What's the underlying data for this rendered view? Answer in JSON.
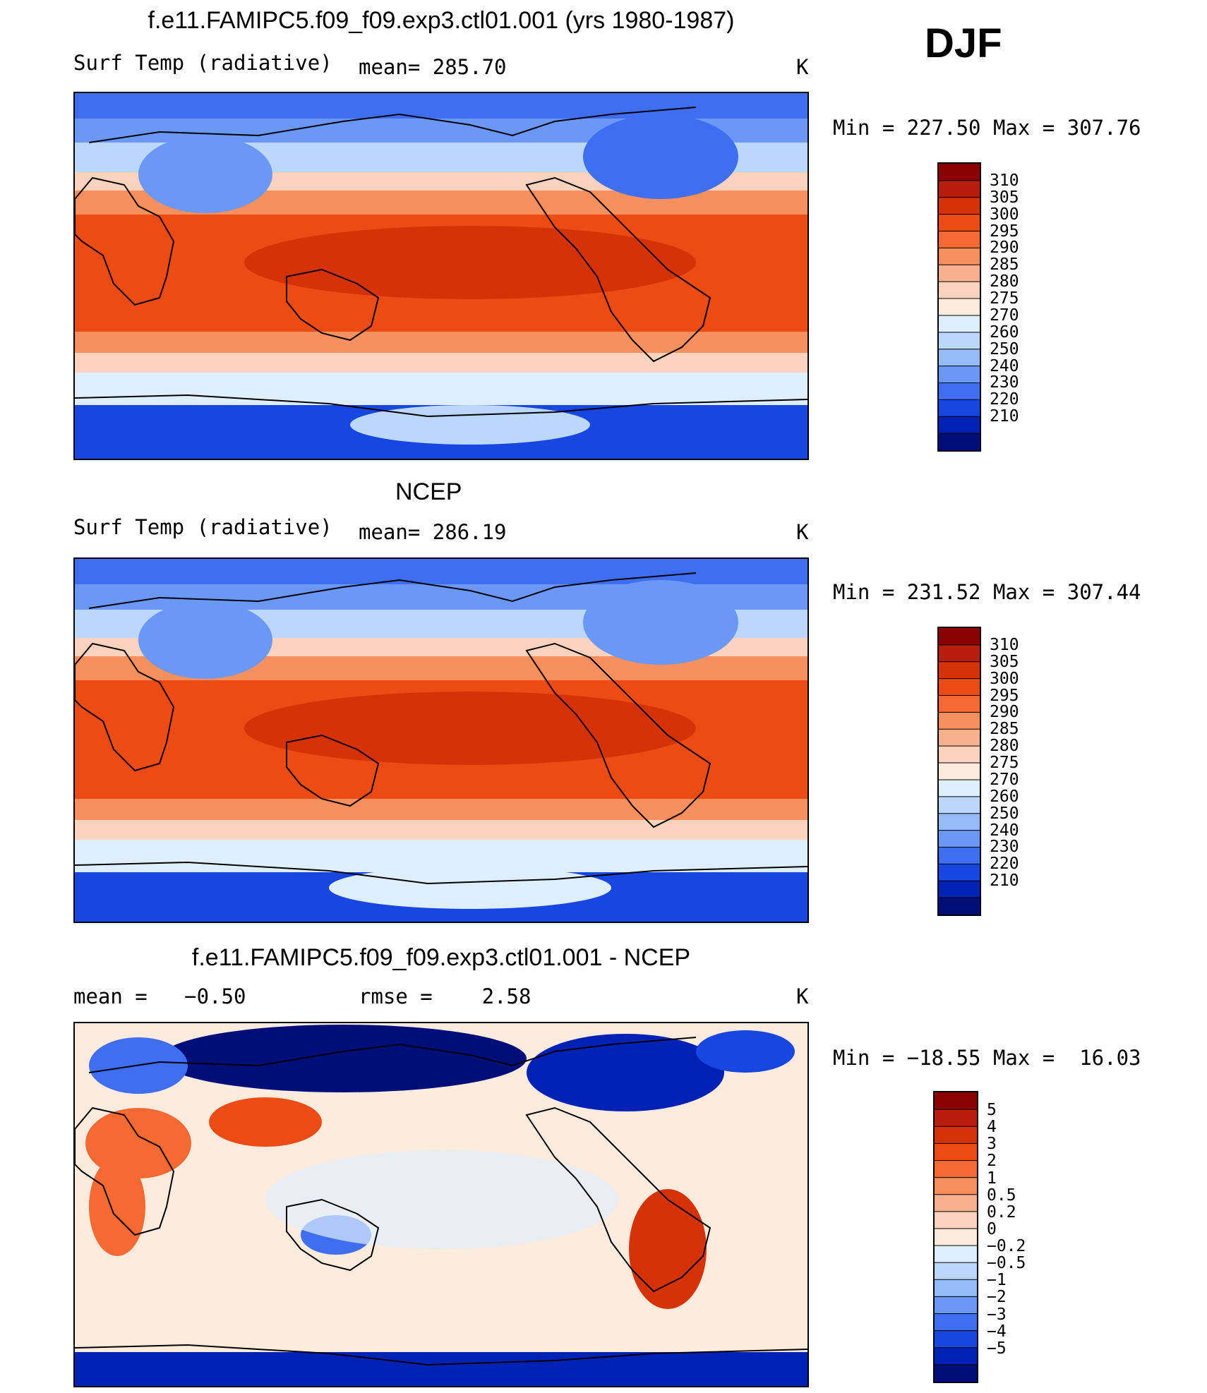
{
  "season": "DJF",
  "units": "K",
  "panels": [
    {
      "id": "model",
      "title": "f.e11.FAMIPC5.f09_f09.exp3.ctl01.001 (yrs 1980-1987)",
      "variable": "Surf Temp (radiative)",
      "stat_text": "mean= 285.70",
      "units": "K",
      "range_text": "Min = 227.50 Max = 307.76"
    },
    {
      "id": "obs",
      "title": "NCEP",
      "variable": "Surf Temp (radiative)",
      "stat_text": "mean= 286.19",
      "units": "K",
      "range_text": "Min = 231.52 Max = 307.44"
    },
    {
      "id": "diff",
      "title": "f.e11.FAMIPC5.f09_f09.exp3.ctl01.001 - NCEP",
      "stat1_text": "mean =   −0.50",
      "stat2_text": "rmse =    2.58",
      "units": "K",
      "range_text": "Min = −18.55 Max =  16.03"
    }
  ],
  "colorbars": {
    "absolute": {
      "labels": [
        "310",
        "305",
        "300",
        "295",
        "290",
        "285",
        "280",
        "275",
        "270",
        "260",
        "250",
        "240",
        "230",
        "220",
        "210"
      ],
      "colors": [
        "#8b0000",
        "#b71c0c",
        "#d53208",
        "#ec4c14",
        "#f46a32",
        "#f7905e",
        "#f9b08c",
        "#fbd3bd",
        "#fdebdd",
        "#dfeefe",
        "#bcd7fd",
        "#95bbfb",
        "#6b98f7",
        "#3f6ff0",
        "#1846e0",
        "#0022b4",
        "#000e7a"
      ]
    },
    "difference": {
      "labels": [
        "5",
        "4",
        "3",
        "2",
        "1",
        "0.5",
        "0.2",
        "0",
        "−0.2",
        "−0.5",
        "−1",
        "−2",
        "−3",
        "−4",
        "−5"
      ],
      "colors": [
        "#8b0000",
        "#b71c0c",
        "#d53208",
        "#ec4c14",
        "#f46a32",
        "#f7905e",
        "#f9b08c",
        "#fbd3bd",
        "#fdebdd",
        "#dfeefe",
        "#bcd7fd",
        "#95bbfb",
        "#6b98f7",
        "#3f6ff0",
        "#1846e0",
        "#0022b4",
        "#000e7a"
      ]
    }
  }
}
